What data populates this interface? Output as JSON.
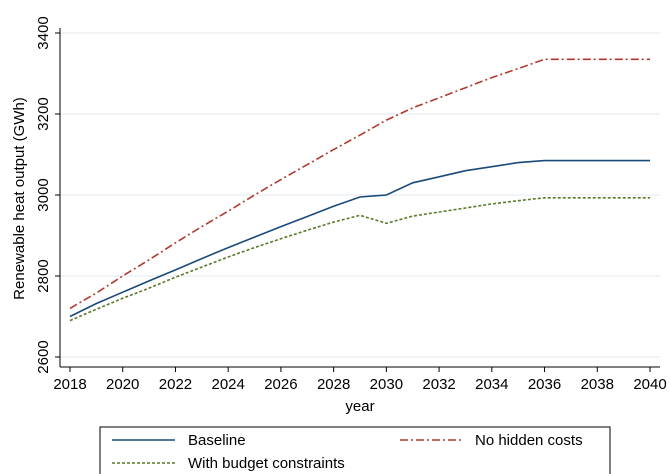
{
  "chart_data": {
    "type": "line",
    "title": "",
    "xlabel": "year",
    "ylabel": "Renewable heat output (GWh)",
    "xlim": [
      2018,
      2040
    ],
    "ylim": [
      2600,
      3400
    ],
    "x_ticks": [
      "2018",
      "2020",
      "2022",
      "2024",
      "2026",
      "2028",
      "2030",
      "2032",
      "2034",
      "2036",
      "2038",
      "2040"
    ],
    "y_ticks": [
      "2600",
      "2800",
      "3000",
      "3200",
      "3400"
    ],
    "grid": true,
    "legend_position": "bottom",
    "x": [
      2018,
      2019,
      2020,
      2021,
      2022,
      2023,
      2024,
      2025,
      2026,
      2027,
      2028,
      2029,
      2030,
      2031,
      2032,
      2033,
      2034,
      2035,
      2036,
      2037,
      2038,
      2039,
      2040
    ],
    "series": [
      {
        "name": "Baseline",
        "color": "#1a4a7a",
        "dash": "solid",
        "values": [
          2700,
          2732,
          2760,
          2788,
          2815,
          2843,
          2870,
          2896,
          2922,
          2947,
          2972,
          2995,
          3000,
          3030,
          3045,
          3060,
          3070,
          3080,
          3085,
          3085,
          3085,
          3085,
          3085
        ]
      },
      {
        "name": "No hidden costs",
        "color": "#b03a2e",
        "dash": "dash-dot",
        "values": [
          2720,
          2758,
          2800,
          2840,
          2882,
          2922,
          2960,
          3000,
          3038,
          3075,
          3112,
          3148,
          3185,
          3215,
          3240,
          3265,
          3290,
          3312,
          3335,
          3335,
          3335,
          3335,
          3335
        ]
      },
      {
        "name": "With budget constraints",
        "color": "#5a7a2a",
        "dash": "dashed",
        "values": [
          2690,
          2718,
          2745,
          2770,
          2797,
          2822,
          2847,
          2870,
          2892,
          2913,
          2933,
          2950,
          2930,
          2948,
          2958,
          2968,
          2978,
          2986,
          2993,
          2993,
          2993,
          2993,
          2993
        ]
      }
    ]
  }
}
